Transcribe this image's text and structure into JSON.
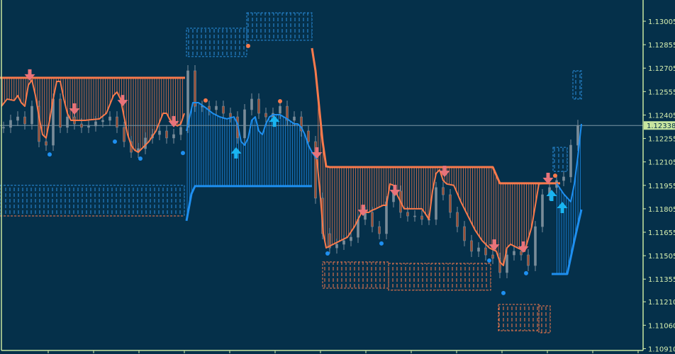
{
  "chart_data": {
    "type": "candlestick",
    "title": "",
    "xlabel": "",
    "ylabel": "",
    "ylim": [
      1.1091,
      1.1308
    ],
    "grid": false,
    "y_ticks": [
      "1.13005",
      "1.12855",
      "1.12705",
      "1.12555",
      "1.12405",
      "1.12255",
      "1.12105",
      "1.11955",
      "1.11805",
      "1.11655",
      "1.11505",
      "1.11355",
      "1.11210",
      "1.11060",
      "1.10910"
    ],
    "current_price": "1.12338",
    "candles_close": [
      1.12326,
      1.12371,
      1.12393,
      1.12348,
      1.12461,
      1.12235,
      1.12212,
      1.12507,
      1.12326,
      1.12393,
      1.12348,
      1.12326,
      1.12335,
      1.12362,
      1.12371,
      1.12393,
      1.12326,
      1.12235,
      1.12167,
      1.1219,
      1.12258,
      1.1228,
      1.12303,
      1.12258,
      1.1228,
      1.12326,
      1.12688,
      1.12461,
      1.12461,
      1.12439,
      1.12461,
      1.12416,
      1.12393,
      1.12258,
      1.12439,
      1.12507,
      1.12416,
      1.12393,
      1.12416,
      1.12461,
      1.12371,
      1.12393,
      1.12303,
      1.12235,
      1.11873,
      1.11646,
      1.11555,
      1.11578,
      1.11601,
      1.11623,
      1.11737,
      1.11782,
      1.11691,
      1.11646,
      1.1185,
      1.11918,
      1.11782,
      1.11759,
      1.11759,
      1.11737,
      1.11737,
      1.11941,
      1.11895,
      1.11782,
      1.11691,
      1.11601,
      1.11533,
      1.11555,
      1.1151,
      1.11488,
      1.11397,
      1.1151,
      1.11533,
      1.1151,
      1.11442,
      1.11691,
      1.11895,
      1.11941,
      1.11986,
      1.12009,
      1.12212,
      1.12338
    ],
    "resistance_line": [
      [
        [
          -0.5,
          1.12643
        ],
        [
          25.6,
          1.12643
        ]
      ],
      [
        [
          43.5,
          1.12833
        ],
        [
          44,
          1.12688
        ],
        [
          44.5,
          1.12461
        ],
        [
          45,
          1.12235
        ],
        [
          45.5,
          1.12076
        ],
        [
          46,
          1.12072
        ],
        [
          69,
          1.12072
        ],
        [
          70,
          1.11968
        ],
        [
          78.5,
          1.11968
        ]
      ]
    ],
    "support_line": [
      [
        [
          25.8,
          1.11728
        ],
        [
          26.5,
          1.119
        ],
        [
          27,
          1.1195
        ],
        [
          43.5,
          1.1195
        ]
      ],
      [
        [
          77.3,
          1.11388
        ],
        [
          79.5,
          1.11388
        ],
        [
          80.5,
          1.116
        ],
        [
          81.5,
          1.118
        ]
      ]
    ],
    "trend_line": [
      {
        "color": "#f97a4c",
        "points": [
          [
            -0.3,
            1.12461
          ],
          [
            0.5,
            1.12507
          ],
          [
            1.5,
            1.12498
          ],
          [
            2,
            1.12529
          ],
          [
            2.5,
            1.12484
          ],
          [
            3,
            1.12461
          ],
          [
            3.5,
            1.12597
          ],
          [
            4,
            1.12629
          ],
          [
            4.5,
            1.12529
          ],
          [
            5,
            1.12393
          ],
          [
            5.5,
            1.1228
          ],
          [
            6,
            1.12258
          ],
          [
            6.5,
            1.12371
          ],
          [
            7,
            1.12507
          ],
          [
            7.5,
            1.1262
          ],
          [
            8,
            1.1262
          ],
          [
            8.5,
            1.12507
          ],
          [
            9,
            1.12416
          ],
          [
            9.5,
            1.12371
          ],
          [
            10.5,
            1.12371
          ],
          [
            11.5,
            1.12371
          ],
          [
            13.5,
            1.1238
          ],
          [
            14.5,
            1.12416
          ],
          [
            15.5,
            1.12529
          ],
          [
            16,
            1.12552
          ],
          [
            16.5,
            1.12507
          ],
          [
            17,
            1.12393
          ],
          [
            17.5,
            1.1228
          ],
          [
            18,
            1.12212
          ],
          [
            18.5,
            1.1218
          ],
          [
            19,
            1.12167
          ],
          [
            19.5,
            1.1219
          ],
          [
            20.5,
            1.12235
          ],
          [
            21.5,
            1.12303
          ],
          [
            22.5,
            1.12416
          ],
          [
            23,
            1.12416
          ],
          [
            23.5,
            1.12371
          ],
          [
            24.5,
            1.12335
          ],
          [
            25,
            1.12348
          ],
          [
            25.5,
            1.12416
          ]
        ]
      },
      {
        "color": "#1e8ff0",
        "points": [
          [
            25.8,
            1.12303
          ],
          [
            26.7,
            1.12484
          ],
          [
            27.5,
            1.12484
          ],
          [
            28.5,
            1.12452
          ],
          [
            29.5,
            1.12416
          ],
          [
            30.5,
            1.12393
          ],
          [
            31.5,
            1.1238
          ],
          [
            32.5,
            1.12393
          ],
          [
            33,
            1.12348
          ],
          [
            33.5,
            1.12235
          ],
          [
            34,
            1.12212
          ],
          [
            34.5,
            1.12258
          ],
          [
            35,
            1.12371
          ],
          [
            35.5,
            1.12393
          ],
          [
            36,
            1.12303
          ],
          [
            36.5,
            1.1228
          ],
          [
            37,
            1.12348
          ],
          [
            37.5,
            1.12393
          ],
          [
            38,
            1.12407
          ],
          [
            39,
            1.12407
          ],
          [
            40,
            1.1238
          ],
          [
            41,
            1.12348
          ],
          [
            41.5,
            1.12348
          ],
          [
            42,
            1.12326
          ],
          [
            42.5,
            1.1228
          ],
          [
            43,
            1.12212
          ],
          [
            43.5,
            1.12167
          ],
          [
            44.2,
            1.12122
          ]
        ]
      },
      {
        "color": "#f97a4c",
        "points": [
          [
            44.2,
            1.12122
          ],
          [
            44.7,
            1.11873
          ],
          [
            45.1,
            1.11646
          ],
          [
            45.5,
            1.11555
          ],
          [
            46.5,
            1.11578
          ],
          [
            48.5,
            1.11623
          ],
          [
            49.5,
            1.11691
          ],
          [
            50,
            1.11737
          ],
          [
            50.5,
            1.11782
          ],
          [
            51.5,
            1.11782
          ],
          [
            52,
            1.11796
          ],
          [
            52.5,
            1.11805
          ],
          [
            53.5,
            1.11827
          ],
          [
            54,
            1.11827
          ],
          [
            54.5,
            1.11964
          ],
          [
            55,
            1.11955
          ],
          [
            55.5,
            1.11895
          ],
          [
            56,
            1.1185
          ],
          [
            56.5,
            1.11805
          ],
          [
            57.5,
            1.11805
          ],
          [
            59,
            1.11805
          ],
          [
            59.5,
            1.11773
          ],
          [
            60,
            1.11737
          ],
          [
            60.5,
            1.11918
          ],
          [
            61,
            1.12031
          ],
          [
            61.5,
            1.12054
          ],
          [
            62,
            1.11986
          ],
          [
            62.5,
            1.11964
          ],
          [
            63.5,
            1.11955
          ],
          [
            64.5,
            1.1185
          ],
          [
            65.5,
            1.11759
          ],
          [
            66.5,
            1.11669
          ],
          [
            67.5,
            1.11601
          ],
          [
            68.5,
            1.11555
          ],
          [
            69.5,
            1.11533
          ],
          [
            70,
            1.11465
          ],
          [
            70.5,
            1.11442
          ],
          [
            71,
            1.11555
          ],
          [
            71.5,
            1.11578
          ],
          [
            72.5,
            1.11555
          ],
          [
            73.5,
            1.11533
          ],
          [
            74.5,
            1.11691
          ],
          [
            75,
            1.11827
          ],
          [
            75.5,
            1.11964
          ],
          [
            76.5,
            1.11968
          ]
        ]
      },
      {
        "color": "#1e8ff0",
        "points": [
          [
            78,
            1.11968
          ],
          [
            79,
            1.119
          ],
          [
            80,
            1.1185
          ],
          [
            80.5,
            1.11964
          ],
          [
            81,
            1.1214
          ],
          [
            81.5,
            1.12348
          ]
        ]
      }
    ],
    "zones": [
      {
        "color": "#2a8fe0",
        "from": 25.8,
        "to": 34.3,
        "top": 1.1296,
        "bottom": 1.12779
      },
      {
        "color": "#2a8fe0",
        "from": 34.3,
        "to": 43.5,
        "top": 1.13059,
        "bottom": 1.12883
      },
      {
        "color": "#2a8fe0",
        "edge": "#f97a4c",
        "from": -0.5,
        "to": 25.5,
        "top": 1.11955,
        "bottom": 1.11759
      },
      {
        "color": "#f97a4c",
        "from": 45,
        "to": 54.3,
        "top": 1.11465,
        "bottom": 1.11297
      },
      {
        "color": "#f97a4c",
        "from": 54.3,
        "to": 68.7,
        "top": 1.11456,
        "bottom": 1.11284
      },
      {
        "color": "#f97a4c",
        "from": 69.8,
        "to": 75.5,
        "top": 1.11193,
        "bottom": 1.11025
      },
      {
        "color": "#f97a4c",
        "from": 75.5,
        "to": 77.1,
        "top": 1.11184,
        "bottom": 1.11012
      },
      {
        "color": "#2a8fe0",
        "from": 77.5,
        "to": 79.5,
        "top": 1.12198,
        "bottom": 1.12044
      },
      {
        "color": "#2a8fe0",
        "from": 80.3,
        "to": 81.5,
        "top": 1.12688,
        "bottom": 1.12507
      }
    ],
    "sell_arrows": [
      [
        3.7,
        1.12634
      ],
      [
        10,
        1.12416
      ],
      [
        16.8,
        1.1247
      ],
      [
        24,
        1.12335
      ],
      [
        44.2,
        1.12135
      ],
      [
        50.7,
        1.11768
      ],
      [
        55.2,
        1.11895
      ],
      [
        62.2,
        1.12017
      ],
      [
        69.2,
        1.11546
      ],
      [
        73.3,
        1.11533
      ],
      [
        76.8,
        1.11972
      ]
    ],
    "buy_arrows": [
      [
        32.8,
        1.1219
      ],
      [
        38.2,
        1.12393
      ],
      [
        77.3,
        1.11918
      ],
      [
        78.8,
        1.11841
      ]
    ],
    "high_dots": [
      [
        28.5,
        1.12498
      ],
      [
        34.5,
        1.12847
      ],
      [
        39,
        1.12493
      ],
      [
        77.8,
        1.12017
      ]
    ],
    "low_dots": [
      [
        6.5,
        1.12153
      ],
      [
        15.7,
        1.12235
      ],
      [
        19.3,
        1.12126
      ],
      [
        25.3,
        1.12162
      ],
      [
        45.7,
        1.11519
      ],
      [
        53.3,
        1.11583
      ],
      [
        68.5,
        1.11474
      ],
      [
        70.5,
        1.11266
      ],
      [
        73.7,
        1.11393
      ]
    ],
    "colors": {
      "background": "#05304a",
      "bear": "#f97a4c",
      "bull": "#1e8ff0",
      "sell_arrow": "#e8737a",
      "buy_arrow": "#19b4f0",
      "candle": "#7a8c99",
      "candle_bear_body": "#9a4f35",
      "axis": "#d8f0b0"
    }
  }
}
